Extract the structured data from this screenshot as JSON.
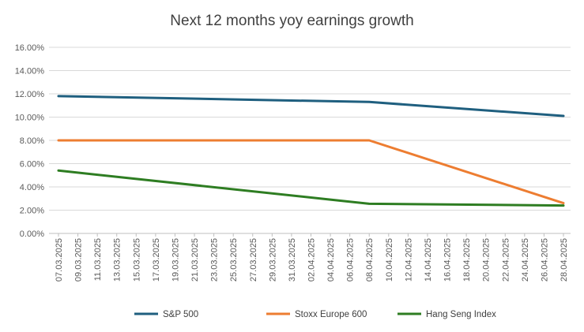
{
  "chart_data": {
    "type": "line",
    "title": "Next 12 months yoy earnings growth",
    "xlabel": "",
    "ylabel": "",
    "ylim": [
      0,
      16
    ],
    "y_ticks": [
      "0.00%",
      "2.00%",
      "4.00%",
      "6.00%",
      "8.00%",
      "10.00%",
      "12.00%",
      "14.00%",
      "16.00%"
    ],
    "x_tick_labels": [
      "07.03.2025",
      "09.03.2025",
      "11.03.2025",
      "13.03.2025",
      "15.03.2025",
      "17.03.2025",
      "19.03.2025",
      "21.03.2025",
      "23.03.2025",
      "25.03.2025",
      "27.03.2025",
      "29.03.2025",
      "31.03.2025",
      "02.04.2025",
      "04.04.2025",
      "06.04.2025",
      "08.04.2025",
      "10.04.2025",
      "12.04.2025",
      "14.04.2025",
      "16.04.2025",
      "18.04.2025",
      "20.04.2025",
      "22.04.2025",
      "24.04.2025",
      "26.04.2025",
      "28.04.2025"
    ],
    "x": [
      "07.03.2025",
      "08.04.2025",
      "28.04.2025"
    ],
    "grid": true,
    "legend_position": "bottom",
    "series": [
      {
        "name": "S&P 500",
        "color": "#1f5f7f",
        "values": [
          11.8,
          11.3,
          10.1
        ]
      },
      {
        "name": "Stoxx Europe 600",
        "color": "#ed7d31",
        "values": [
          8.0,
          8.0,
          2.6
        ]
      },
      {
        "name": "Hang Seng Index",
        "color": "#2e7d22",
        "values": [
          5.4,
          2.55,
          2.4
        ]
      }
    ]
  }
}
